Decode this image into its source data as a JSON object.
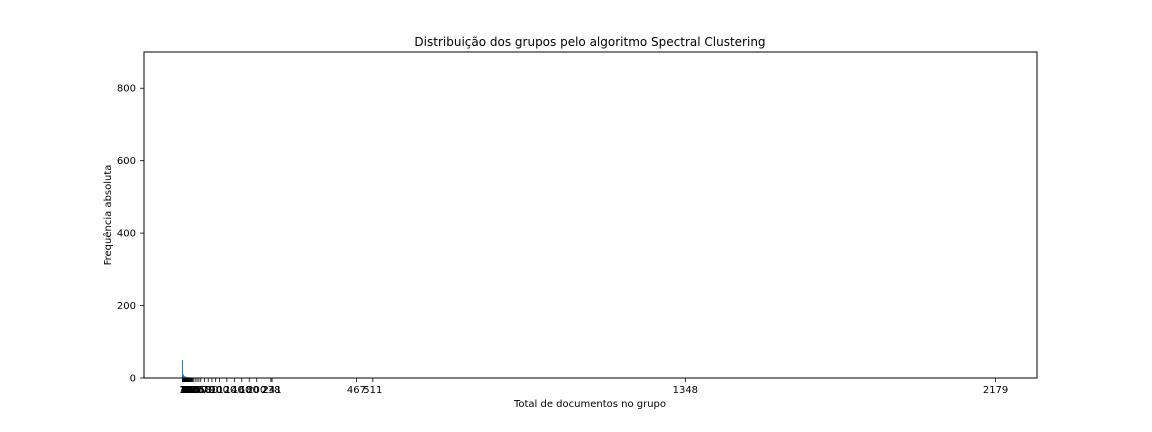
{
  "chart_data": {
    "type": "bar",
    "title": "Distribuição dos grupos pelo algoritmo Spectral Clustering",
    "xlabel": "Total de documentos no grupo",
    "ylabel": "Frequência absoluta",
    "xlim": [
      -102,
      2290
    ],
    "ylim": [
      0,
      900
    ],
    "yticks": [
      0,
      200,
      400,
      600,
      800
    ],
    "xticks": [
      1,
      2,
      3,
      4,
      5,
      6,
      7,
      8,
      9,
      10,
      11,
      12,
      13,
      14,
      15,
      16,
      17,
      18,
      19,
      20,
      22,
      24,
      26,
      28,
      30,
      35,
      40,
      45,
      50,
      60,
      70,
      80,
      90,
      100,
      120,
      140,
      160,
      180,
      200,
      238,
      241,
      467,
      511,
      1348,
      2179
    ],
    "visible_xtick_labels": [
      "1348",
      "2179"
    ],
    "bars": [
      {
        "x": 1,
        "value": 49
      },
      {
        "x": 2,
        "value": 12
      },
      {
        "x": 3,
        "value": 9
      },
      {
        "x": 4,
        "value": 7
      },
      {
        "x": 5,
        "value": 6
      },
      {
        "x": 6,
        "value": 5
      },
      {
        "x": 7,
        "value": 4
      },
      {
        "x": 8,
        "value": 4
      },
      {
        "x": 9,
        "value": 3
      },
      {
        "x": 10,
        "value": 3
      },
      {
        "x": 12,
        "value": 3
      },
      {
        "x": 14,
        "value": 2
      },
      {
        "x": 16,
        "value": 2
      },
      {
        "x": 18,
        "value": 2
      },
      {
        "x": 20,
        "value": 2
      },
      {
        "x": 24,
        "value": 2
      },
      {
        "x": 28,
        "value": 1
      },
      {
        "x": 35,
        "value": 1
      },
      {
        "x": 45,
        "value": 1
      },
      {
        "x": 60,
        "value": 1
      },
      {
        "x": 90,
        "value": 1
      },
      {
        "x": 120,
        "value": 1
      },
      {
        "x": 160,
        "value": 1
      },
      {
        "x": 200,
        "value": 1
      },
      {
        "x": 238,
        "value": 1
      },
      {
        "x": 241,
        "value": 1
      },
      {
        "x": 467,
        "value": 1
      },
      {
        "x": 511,
        "value": 1
      },
      {
        "x": 1348,
        "value": 1
      },
      {
        "x": 2179,
        "value": 1
      }
    ],
    "bar_color": "#1f77b4",
    "grid": false,
    "legend": "none"
  }
}
